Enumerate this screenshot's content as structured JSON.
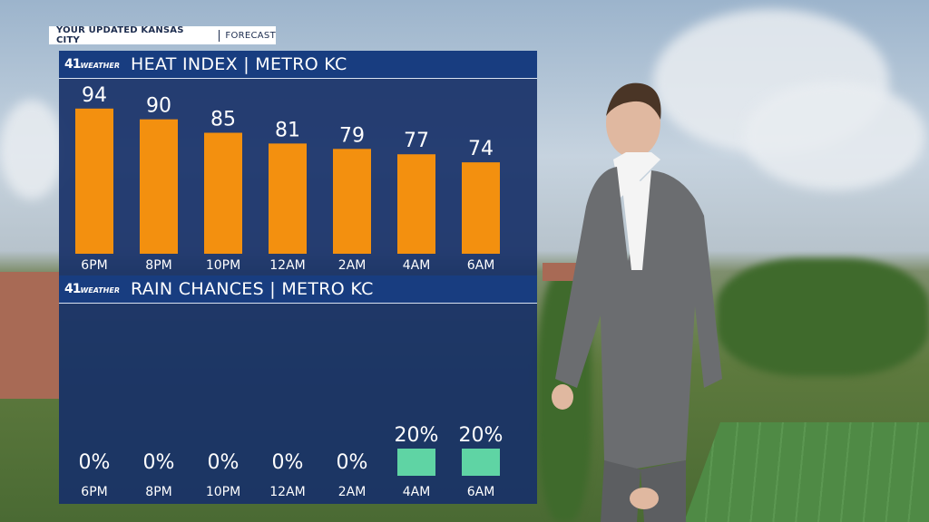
{
  "banner": {
    "left": "YOUR UPDATED KANSAS CITY",
    "right": "FORECAST"
  },
  "logo": {
    "number": "41",
    "word": "WEATHER"
  },
  "colors": {
    "heat_bar": "#f3900f",
    "rain_bar": "#5fd4a4",
    "panel": "#183168",
    "header": "#183d80"
  },
  "chart_data": [
    {
      "type": "bar",
      "title": "HEAT INDEX | METRO KC",
      "categories": [
        "6PM",
        "8PM",
        "10PM",
        "12AM",
        "2AM",
        "4AM",
        "6AM"
      ],
      "values": [
        94,
        90,
        85,
        81,
        79,
        77,
        74
      ],
      "value_labels": [
        "94",
        "90",
        "85",
        "81",
        "79",
        "77",
        "74"
      ],
      "ylim": [
        40,
        100
      ]
    },
    {
      "type": "bar",
      "title": "RAIN CHANCES | METRO KC",
      "categories": [
        "6PM",
        "8PM",
        "10PM",
        "12AM",
        "2AM",
        "4AM",
        "6AM"
      ],
      "values": [
        0,
        0,
        0,
        0,
        0,
        20,
        20
      ],
      "value_labels": [
        "0%",
        "0%",
        "0%",
        "0%",
        "0%",
        "20%",
        "20%"
      ],
      "ylim": [
        0,
        100
      ]
    }
  ]
}
